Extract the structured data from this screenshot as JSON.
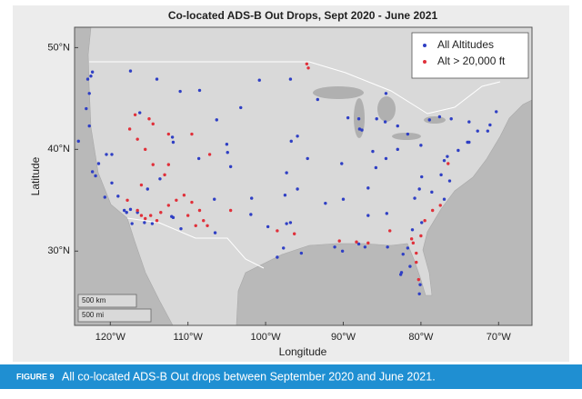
{
  "chart_data": {
    "type": "scatter",
    "title": "Co-located ADS-B Out Drops, Sept 2020 - June 2021",
    "x_label": "Longitude",
    "y_label": "Latitude",
    "xlim": [
      -124.6,
      -65.7
    ],
    "ylim": [
      22.7,
      52
    ],
    "xticks": [
      {
        "value": -120,
        "label": "120°W"
      },
      {
        "value": -110,
        "label": "110°W"
      },
      {
        "value": -100,
        "label": "100°W"
      },
      {
        "value": -90,
        "label": "90°W"
      },
      {
        "value": -80,
        "label": "80°W"
      },
      {
        "value": -70,
        "label": "70°W"
      }
    ],
    "yticks": [
      {
        "value": 30,
        "label": "30°N"
      },
      {
        "value": 40,
        "label": "40°N"
      },
      {
        "value": 50,
        "label": "50°N"
      }
    ],
    "grid": false,
    "legend": "upper right",
    "annotations": [
      "500 km",
      "500 mi"
    ],
    "series": [
      {
        "name": "All Altitudes",
        "color": "#2f3fc4",
        "x": [
          -122.3,
          -122.5,
          -122.9,
          -122.7,
          -122.3,
          -121.9,
          -121.5,
          -119.8,
          -118.2,
          -117.9,
          -117.2,
          -116.5,
          -117.4,
          -120.5,
          -119.8,
          -115.2,
          -112.1,
          -111.9,
          -110.9,
          -111.9,
          -112.0,
          -104.9,
          -105.0,
          -106.6,
          -97.7,
          -98.5,
          -95.4,
          -96.8,
          -97.3,
          -97.5,
          -95.9,
          -94.6,
          -90.2,
          -87.6,
          -87.9,
          -93.3,
          -88.0,
          -86.2,
          -84.5,
          -83.0,
          -83.0,
          -81.7,
          -80.0,
          -84.4,
          -86.8,
          -90.1,
          -91.1,
          -86.8,
          -85.8,
          -81.7,
          -81.4,
          -80.2,
          -80.1,
          -82.5,
          -82.6,
          -80.8,
          -78.6,
          -77.4,
          -77.0,
          -76.6,
          -75.2,
          -74.0,
          -73.8,
          -72.7,
          -71.1,
          -71.4,
          -70.3,
          -73.8,
          -76.1,
          -77.6,
          -78.9,
          -79.9,
          -81.1,
          -76.3,
          -79.9,
          -80.2,
          -100.8,
          -96.8,
          -96.7,
          -95.9,
          -97.3,
          -101.8,
          -101.9,
          -106.5,
          -99.7,
          -104.5,
          -108.6,
          -113.6,
          -116.2,
          -117.4,
          -114.0,
          -108.5,
          -111.0,
          -106.3,
          -103.2,
          -92.3,
          -90.0,
          -89.4,
          -85.7,
          -84.6,
          -122.7,
          -123.1,
          -124.1,
          -119.0,
          -120.7,
          -115.6,
          -114.6,
          -88.0,
          -87.2,
          -84.3,
          -82.3,
          -77.0,
          -84.5
        ],
        "values": [
          47.6,
          47.2,
          46.9,
          45.5,
          37.8,
          37.4,
          38.6,
          36.7,
          34.0,
          33.8,
          32.7,
          33.8,
          34.1,
          39.5,
          39.5,
          36.1,
          33.4,
          33.3,
          32.2,
          40.7,
          41.2,
          39.7,
          40.5,
          35.1,
          30.3,
          29.4,
          29.8,
          32.8,
          32.7,
          35.5,
          36.1,
          39.1,
          38.6,
          41.9,
          42.0,
          44.9,
          43.0,
          39.8,
          39.1,
          40.0,
          42.3,
          41.5,
          40.4,
          33.7,
          33.5,
          30.0,
          30.4,
          36.2,
          38.2,
          30.3,
          28.5,
          25.8,
          26.7,
          27.9,
          27.7,
          35.2,
          35.8,
          37.5,
          38.9,
          39.3,
          39.9,
          40.7,
          40.7,
          41.8,
          42.4,
          41.8,
          43.7,
          42.7,
          43.0,
          43.2,
          42.9,
          32.8,
          32.1,
          36.9,
          37.3,
          36.1,
          46.8,
          46.9,
          40.8,
          41.3,
          37.7,
          35.2,
          33.6,
          31.8,
          32.4,
          38.3,
          39.1,
          37.1,
          43.6,
          47.7,
          46.9,
          45.8,
          45.7,
          42.9,
          44.1,
          34.7,
          35.1,
          43.1,
          43.0,
          42.7,
          42.3,
          44.0,
          40.8,
          35.4,
          35.3,
          32.8,
          32.7,
          30.7,
          30.4,
          30.4,
          29.7,
          35.1,
          45.5
        ]
      },
      {
        "name": "Alt > 20,000 ft",
        "color": "#e0303a",
        "x": [
          -116.5,
          -116.0,
          -115.5,
          -114.8,
          -114.0,
          -113.5,
          -112.5,
          -111.5,
          -110.5,
          -109.5,
          -108.5,
          -108.0,
          -107.5,
          -109.0,
          -110.0,
          -113.0,
          -114.5,
          -115.5,
          -116.5,
          -117.5,
          -116.8,
          -115.0,
          -114.5,
          -112.5,
          -109.5,
          -112.5,
          -107.2,
          -104.5,
          -116.0,
          -117.8,
          -94.7,
          -94.5,
          -80.0,
          -80.6,
          -80.3,
          -80.6,
          -81.0,
          -81.2,
          -79.5,
          -78.5,
          -77.5,
          -84.0,
          -86.8,
          -88.3,
          -90.5,
          -96.3,
          -98.5,
          -76.5
        ],
        "values": [
          34.0,
          33.5,
          33.2,
          33.5,
          33.0,
          33.8,
          34.5,
          35.0,
          35.5,
          34.8,
          34.0,
          33.0,
          32.5,
          32.5,
          33.5,
          37.5,
          38.5,
          40.0,
          41.0,
          42.0,
          43.4,
          43.0,
          42.5,
          41.5,
          41.5,
          38.5,
          39.5,
          34.0,
          36.5,
          35.0,
          48.4,
          48.0,
          31.5,
          28.9,
          27.2,
          29.8,
          30.8,
          31.2,
          33.0,
          34.0,
          34.5,
          32.0,
          30.8,
          30.9,
          31.0,
          31.7,
          32.0,
          38.6
        ]
      }
    ]
  },
  "caption": {
    "label": "FIGURE 9",
    "text": "All co-located ADS-B Out drops between September 2020 and June 2021."
  }
}
